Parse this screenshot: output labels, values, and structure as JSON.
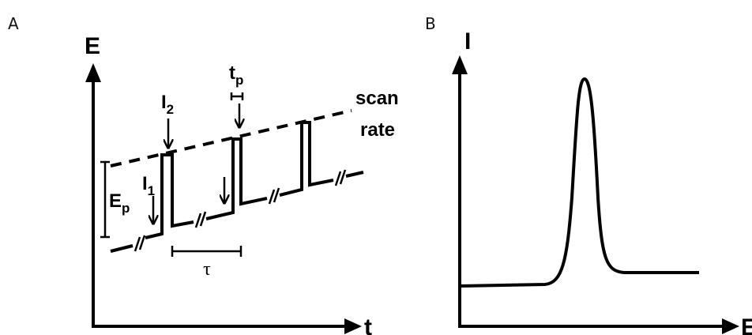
{
  "panels": [
    {
      "label": "A",
      "y_axis": "E",
      "x_axis": "t",
      "annotations": {
        "scan_rate": [
          "scan",
          "rate"
        ],
        "pulse_height": {
          "main": "E",
          "sub": "p"
        },
        "pulse_width": {
          "main": "t",
          "sub": "p"
        },
        "current_1": {
          "main": "I",
          "sub": "1"
        },
        "current_2": {
          "main": "I",
          "sub": "2"
        },
        "period": "τ"
      }
    },
    {
      "label": "B",
      "y_axis": "I",
      "x_axis": "E"
    }
  ]
}
